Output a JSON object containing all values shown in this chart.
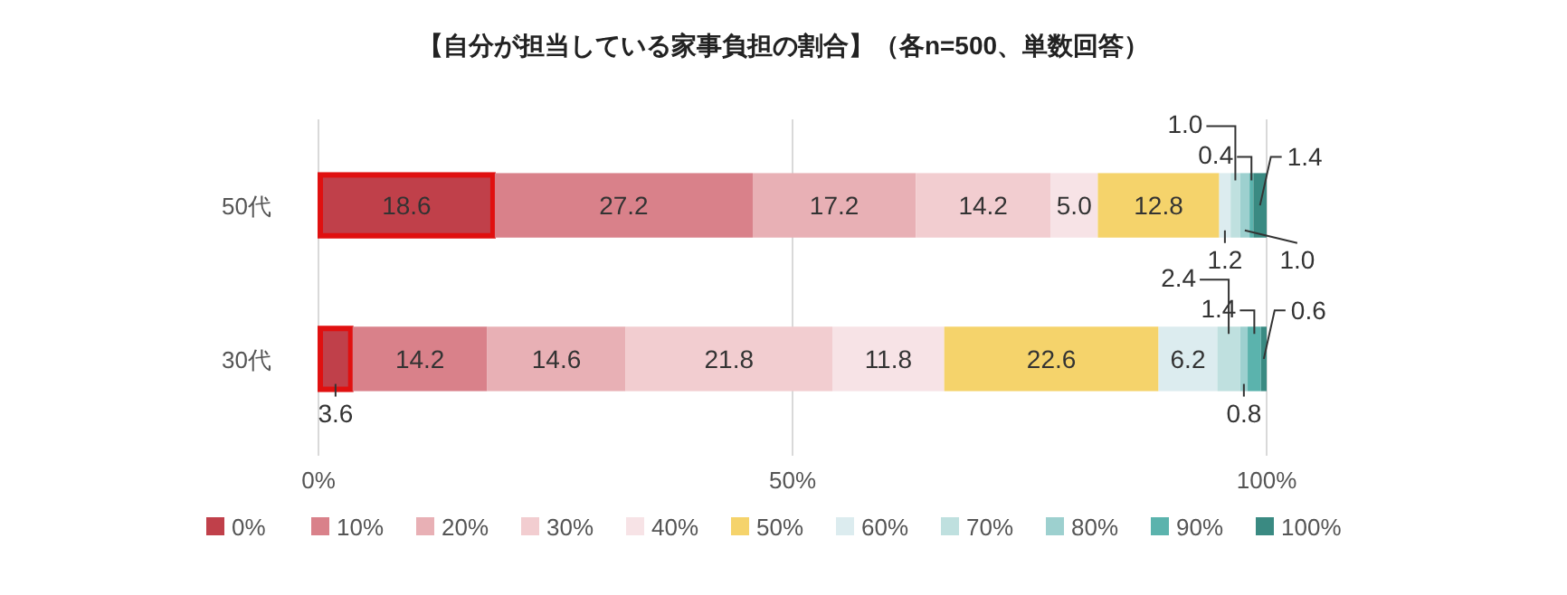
{
  "chart_data": {
    "type": "bar",
    "orientation": "horizontal",
    "stacked": true,
    "title": "【自分が担当している家事負担の割合】（各n=500、単数回答）",
    "categories": [
      "50代",
      "30代"
    ],
    "series": [
      {
        "name": "0%",
        "color": "#c0404a",
        "values": [
          18.6,
          3.6
        ],
        "value_labels": [
          "18.6",
          "3.6"
        ]
      },
      {
        "name": "10%",
        "color": "#d9818a",
        "values": [
          27.2,
          14.2
        ],
        "value_labels": [
          "27.2",
          "14.2"
        ]
      },
      {
        "name": "20%",
        "color": "#e8b0b5",
        "values": [
          17.2,
          14.6
        ],
        "value_labels": [
          "17.2",
          "14.6"
        ]
      },
      {
        "name": "30%",
        "color": "#f2cdd0",
        "values": [
          14.2,
          21.8
        ],
        "value_labels": [
          "14.2",
          "21.8"
        ]
      },
      {
        "name": "40%",
        "color": "#f7e3e6",
        "values": [
          5.0,
          11.8
        ],
        "value_labels": [
          "5.0",
          "11.8"
        ]
      },
      {
        "name": "50%",
        "color": "#f5d36b",
        "values": [
          12.8,
          22.6
        ],
        "value_labels": [
          "12.8",
          "22.6"
        ]
      },
      {
        "name": "60%",
        "color": "#dcecef",
        "values": [
          1.2,
          6.2
        ],
        "value_labels": [
          "1.2",
          "6.2"
        ]
      },
      {
        "name": "70%",
        "color": "#bfe0df",
        "values": [
          1.0,
          2.4
        ],
        "value_labels": [
          "1.0",
          "2.4"
        ]
      },
      {
        "name": "80%",
        "color": "#9dd0cf",
        "values": [
          1.0,
          0.8
        ],
        "value_labels": [
          "1.0",
          "0.8"
        ]
      },
      {
        "name": "90%",
        "color": "#5bb3ad",
        "values": [
          0.4,
          1.4
        ],
        "value_labels": [
          "0.4",
          "1.4"
        ]
      },
      {
        "name": "100%",
        "color": "#3a8a82",
        "values": [
          1.4,
          0.6
        ],
        "value_labels": [
          "1.4",
          "0.6"
        ]
      }
    ],
    "xlim": [
      0,
      100
    ],
    "xticks": [
      {
        "value": 0,
        "label": "0%"
      },
      {
        "value": 50,
        "label": "50%"
      },
      {
        "value": 100,
        "label": "100%"
      }
    ],
    "grid": "x",
    "legend": "bottom"
  }
}
